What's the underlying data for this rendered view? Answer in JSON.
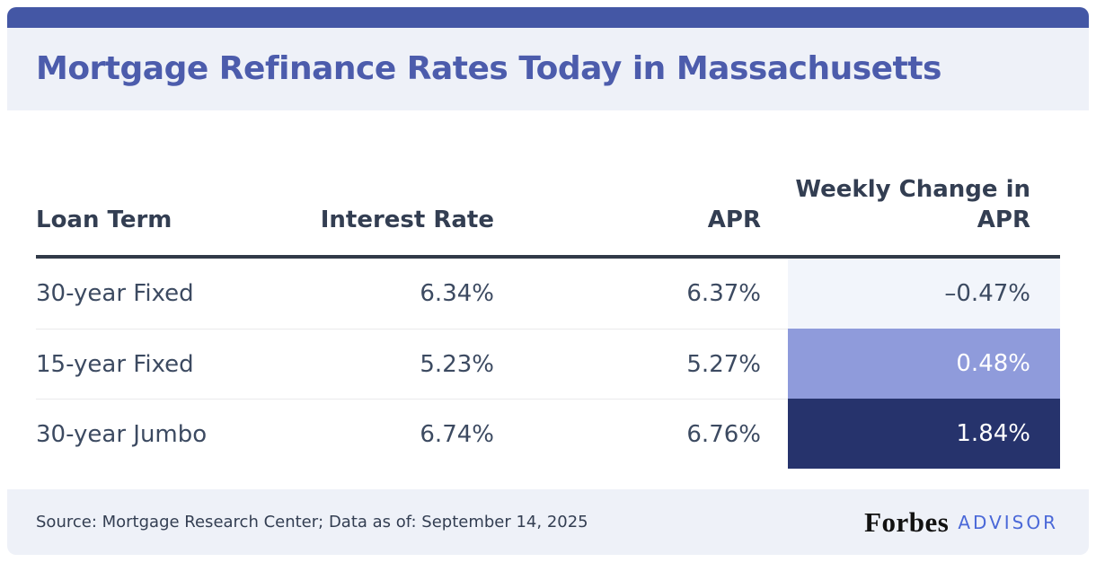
{
  "chart_data": {
    "type": "table",
    "title": "Mortgage Refinance Rates Today in Massachusetts",
    "columns": [
      "Loan Term",
      "Interest Rate",
      "APR",
      "Weekly Change in APR"
    ],
    "rows": [
      [
        "30-year Fixed",
        "6.34%",
        "6.37%",
        "–0.47%"
      ],
      [
        "15-year Fixed",
        "5.23%",
        "5.27%",
        "0.48%"
      ],
      [
        "30-year Jumbo",
        "6.74%",
        "6.76%",
        "1.84%"
      ]
    ],
    "source": "Source: Mortgage Research Center; Data as of: September 14, 2025",
    "legend_position": "none",
    "grid": "row-dividers",
    "weekly_change_heatmap": [
      "#f2f5fb",
      "#8f9bdb",
      "#26336c"
    ]
  },
  "table_styles": {
    "cell0": "background:#f2f5fb;color:#3c4a61",
    "cell1": "background:#8f9bdb;color:#ffffff",
    "cell2": "background:#26336c;color:#ffffff"
  },
  "footer": {
    "brand": "Forbes",
    "brand_suffix": "ADVISOR"
  },
  "colors": {
    "topbar": "#4457a5",
    "panel": "#eef1f8",
    "title": "#4c5cac",
    "header_text": "#333e52",
    "body_text": "#3c4a61",
    "rule": "#313a48",
    "divider": "#eaeaec",
    "advisor": "#4a68d8",
    "brand_black": "#121212"
  }
}
